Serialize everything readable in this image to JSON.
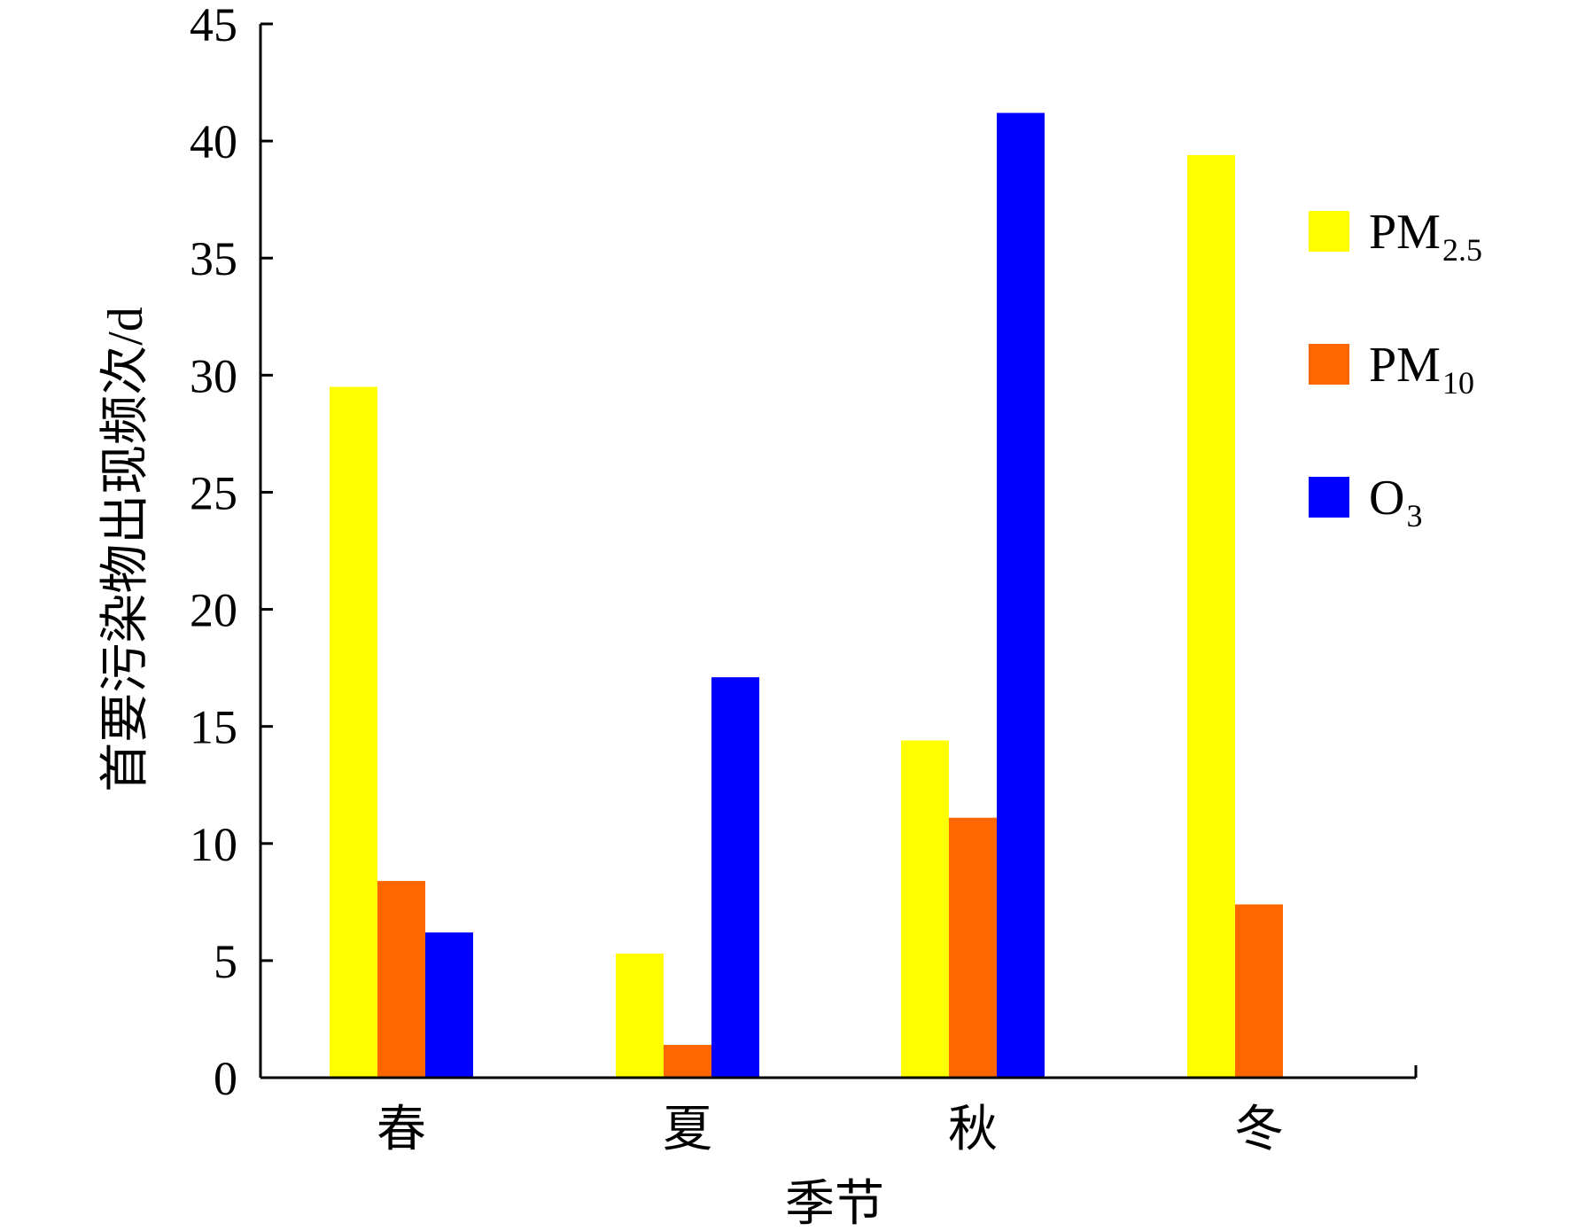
{
  "chart_data": {
    "type": "bar",
    "xlabel": "季节",
    "ylabel": "首要污染物出现频次/d",
    "ylim": [
      0,
      45
    ],
    "yticks": [
      0,
      5,
      10,
      15,
      20,
      25,
      30,
      35,
      40,
      45
    ],
    "categories": [
      "春",
      "夏",
      "秋",
      "冬"
    ],
    "series": [
      {
        "name": "PM2.5",
        "name_main": "PM",
        "name_sub": "2.5",
        "color": "#FFFF00",
        "values": [
          29.5,
          5.3,
          14.4,
          39.4
        ]
      },
      {
        "name": "PM10",
        "name_main": "PM",
        "name_sub": "10",
        "color": "#FF6600",
        "values": [
          8.4,
          1.4,
          11.1,
          7.4
        ]
      },
      {
        "name": "O3",
        "name_main": "O",
        "name_sub": "3",
        "color": "#0000FF",
        "values": [
          6.2,
          17.1,
          41.2,
          0
        ]
      }
    ],
    "legend_position": "right",
    "grid": false
  }
}
